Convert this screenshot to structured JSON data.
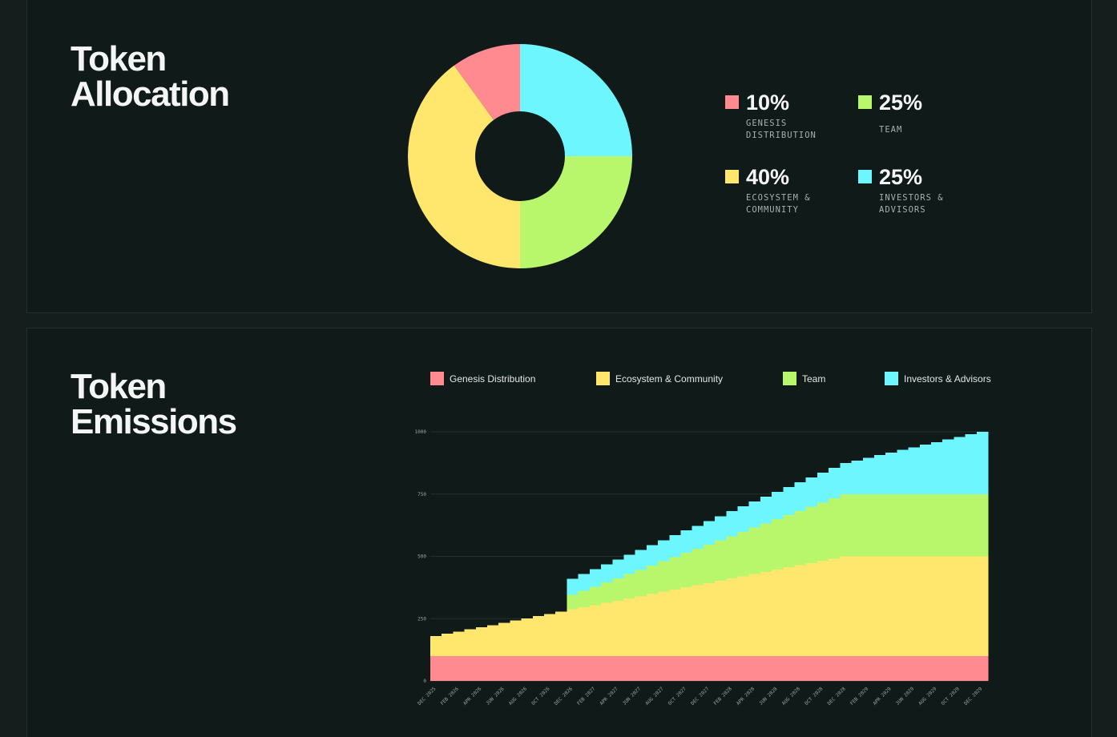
{
  "chart_data": [
    {
      "type": "pie",
      "title": "Token Allocation",
      "categories": [
        "INVESTORS & ADVISORS",
        "TEAM",
        "ECOSYSTEM & COMMUNITY",
        "GENESIS DISTRIBUTION"
      ],
      "values": [
        25,
        25,
        40,
        10
      ],
      "value_labels": [
        "25%",
        "25%",
        "40%",
        "10%"
      ],
      "colors": [
        "#6ef6ff",
        "#b8f76c",
        "#ffe66d",
        "#ff8a8f"
      ]
    },
    {
      "type": "bar",
      "stacked": true,
      "title": "Token Emissions",
      "categories": [
        "DEC 2025",
        null,
        "FEB 2026",
        null,
        "APR 2026",
        null,
        "JUN 2026",
        null,
        "AUG 2026",
        null,
        "OCT 2026",
        null,
        "DEC 2026",
        null,
        "FEB 2027",
        null,
        "APR 2027",
        null,
        "JUN 2027",
        null,
        "AUG 2027",
        null,
        "OCT 2027",
        null,
        "DEC 2027",
        null,
        "FEB 2028",
        null,
        "APR 2028",
        null,
        "JUN 2028",
        null,
        "AUG 2028",
        null,
        "OCT 2028",
        null,
        "DEC 2028",
        null,
        "FEB 2029",
        null,
        "APR 2029",
        null,
        "JUN 2029",
        null,
        "AUG 2029",
        null,
        "OCT 2029",
        null,
        "DEC 2029"
      ],
      "series": [
        {
          "name": "Genesis Distribution",
          "color": "#ff8a8f",
          "values": [
            100,
            100,
            100,
            100,
            100,
            100,
            100,
            100,
            100,
            100,
            100,
            100,
            100,
            100,
            100,
            100,
            100,
            100,
            100,
            100,
            100,
            100,
            100,
            100,
            100,
            100,
            100,
            100,
            100,
            100,
            100,
            100,
            100,
            100,
            100,
            100,
            100,
            100,
            100,
            100,
            100,
            100,
            100,
            100,
            100,
            100,
            100,
            100,
            100
          ]
        },
        {
          "name": "Ecosystem & Community",
          "color": "#ffe66d",
          "values": [
            80,
            89,
            98,
            107,
            116,
            124,
            133,
            142,
            151,
            160,
            169,
            178,
            187,
            196,
            204,
            213,
            222,
            231,
            240,
            249,
            258,
            267,
            276,
            284,
            293,
            302,
            311,
            320,
            329,
            338,
            347,
            356,
            364,
            373,
            382,
            391,
            400,
            400,
            400,
            400,
            400,
            400,
            400,
            400,
            400,
            400,
            400,
            400,
            400
          ]
        },
        {
          "name": "Team",
          "color": "#b8f76c",
          "values": [
            0,
            0,
            0,
            0,
            0,
            0,
            0,
            0,
            0,
            0,
            0,
            0,
            58,
            66,
            74,
            82,
            90,
            98,
            106,
            114,
            122,
            130,
            138,
            146,
            154,
            162,
            170,
            178,
            186,
            194,
            202,
            210,
            218,
            226,
            234,
            242,
            250,
            250,
            250,
            250,
            250,
            250,
            250,
            250,
            250,
            250,
            250,
            250,
            250
          ]
        },
        {
          "name": "Investors & Advisors",
          "color": "#6ef6ff",
          "values": [
            0,
            0,
            0,
            0,
            0,
            0,
            0,
            0,
            0,
            0,
            0,
            0,
            65,
            67.5,
            70,
            72.5,
            75,
            77.5,
            80,
            82.5,
            85,
            87.5,
            90,
            92.5,
            95,
            97.5,
            100,
            102.5,
            105,
            107.5,
            110,
            112.5,
            115,
            117.5,
            120,
            122.5,
            125,
            135,
            146,
            156,
            167,
            177,
            188,
            198,
            208,
            219,
            229,
            240,
            250
          ]
        }
      ],
      "ylim": [
        0,
        1000
      ],
      "yticks": [
        0,
        250,
        500,
        750,
        1000
      ],
      "grid": true
    }
  ]
}
